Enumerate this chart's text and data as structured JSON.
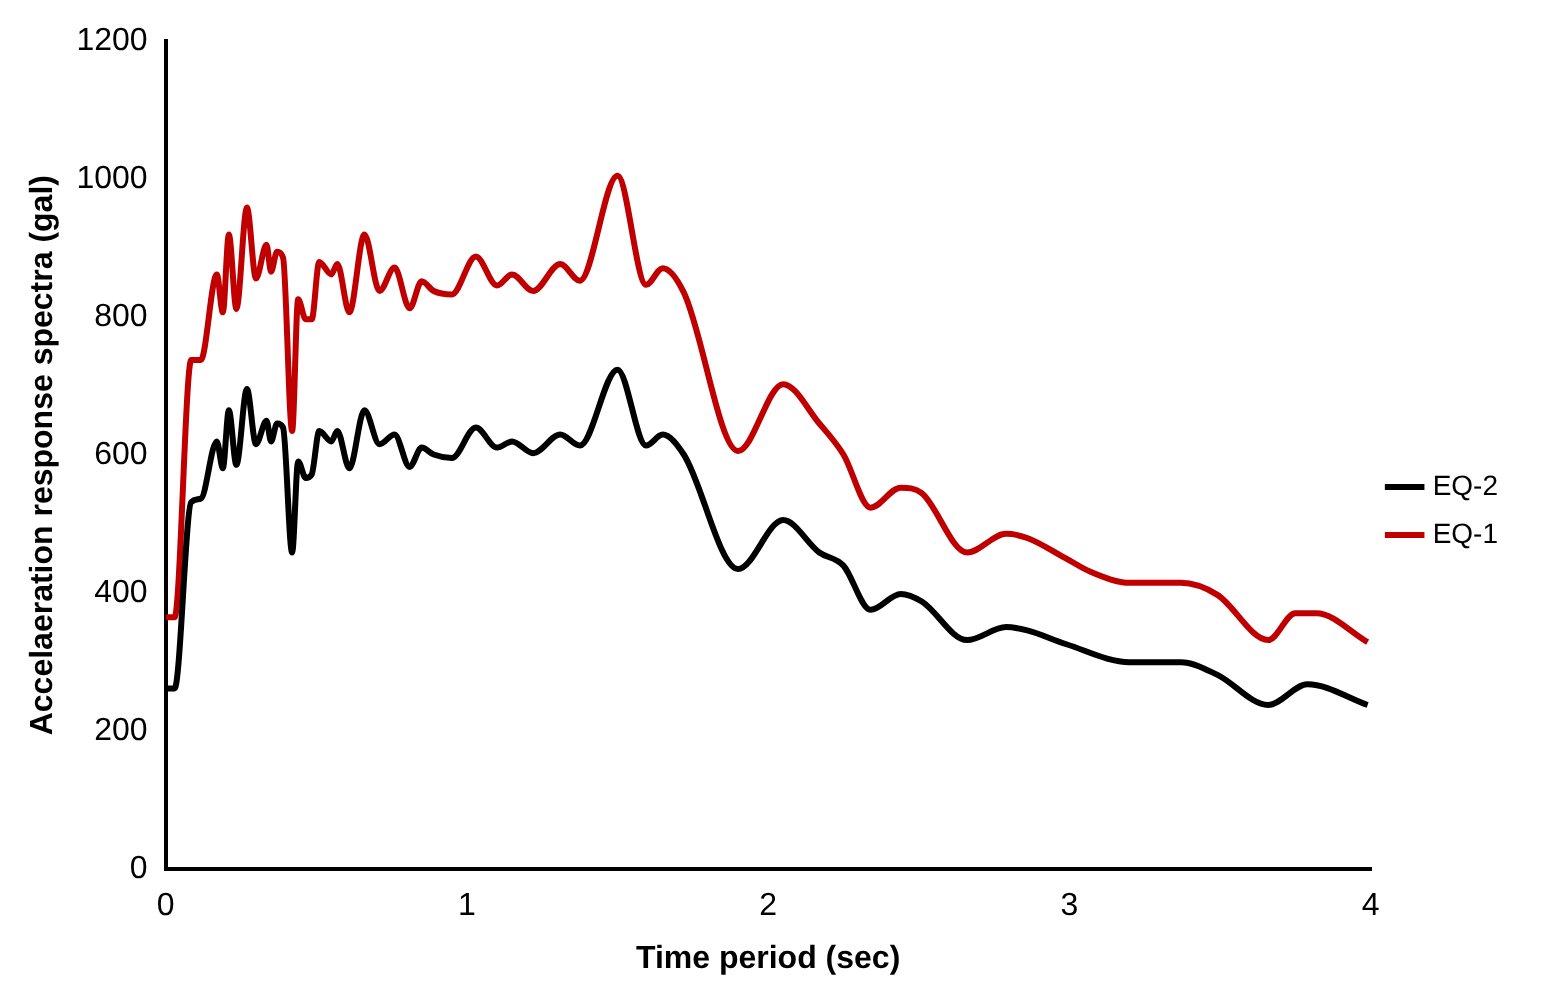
{
  "chart_data": {
    "type": "line",
    "xlabel": "Time period (sec)",
    "ylabel": "Accelaeration response spectra (gal)",
    "xlim": [
      0,
      4
    ],
    "xticks": [
      0,
      1,
      2,
      3,
      4
    ],
    "ylim": [
      0,
      1200
    ],
    "yticks": [
      0,
      200,
      400,
      600,
      800,
      1000,
      1200
    ],
    "grid": false,
    "legend": "right",
    "marker": "none",
    "line_style": "solid",
    "series": [
      {
        "name": "EQ-2",
        "color": "#000000",
        "x": [
          0,
          0.03,
          0.085,
          0.117,
          0.17,
          0.19,
          0.21,
          0.235,
          0.27,
          0.3,
          0.335,
          0.35,
          0.37,
          0.39,
          0.42,
          0.44,
          0.465,
          0.485,
          0.51,
          0.55,
          0.57,
          0.61,
          0.66,
          0.71,
          0.76,
          0.81,
          0.85,
          0.89,
          0.95,
          1.03,
          1.1,
          1.15,
          1.22,
          1.31,
          1.375,
          1.5,
          1.595,
          1.65,
          1.72,
          1.9,
          2.05,
          2.17,
          2.25,
          2.34,
          2.44,
          2.51,
          2.66,
          2.79,
          2.86,
          2.99,
          3.2,
          3.37,
          3.49,
          3.66,
          3.79,
          3.99
        ],
        "values": [
          262,
          262,
          532,
          537,
          620,
          581,
          665,
          586,
          696,
          616,
          650,
          620,
          646,
          640,
          459,
          591,
          567,
          572,
          635,
          620,
          635,
          581,
          665,
          616,
          630,
          583,
          611,
          601,
          596,
          640,
          611,
          620,
          603,
          630,
          614,
          724,
          614,
          630,
          601,
          435,
          506,
          459,
          440,
          376,
          399,
          388,
          332,
          351,
          346,
          326,
          300,
          300,
          282,
          238,
          268,
          238
        ]
      },
      {
        "name": "EQ-1",
        "color": "#c00000",
        "x": [
          0,
          0.03,
          0.085,
          0.117,
          0.17,
          0.19,
          0.21,
          0.235,
          0.27,
          0.3,
          0.335,
          0.35,
          0.37,
          0.39,
          0.42,
          0.44,
          0.465,
          0.485,
          0.51,
          0.55,
          0.57,
          0.61,
          0.66,
          0.71,
          0.76,
          0.81,
          0.85,
          0.89,
          0.95,
          1.03,
          1.1,
          1.15,
          1.22,
          1.31,
          1.375,
          1.5,
          1.595,
          1.65,
          1.72,
          1.9,
          2.05,
          2.17,
          2.25,
          2.34,
          2.44,
          2.51,
          2.66,
          2.79,
          2.86,
          2.99,
          3.07,
          3.2,
          3.37,
          3.49,
          3.66,
          3.75,
          3.82,
          3.99
        ],
        "values": [
          365,
          365,
          738,
          738,
          862,
          807,
          920,
          812,
          959,
          856,
          905,
          866,
          895,
          886,
          635,
          826,
          797,
          797,
          880,
          862,
          877,
          807,
          920,
          838,
          872,
          813,
          852,
          838,
          833,
          888,
          846,
          862,
          838,
          877,
          853,
          1005,
          847,
          871,
          836,
          606,
          703,
          646,
          601,
          524,
          553,
          545,
          459,
          486,
          480,
          450,
          431,
          415,
          415,
          398,
          332,
          371,
          371,
          329
        ]
      }
    ]
  }
}
